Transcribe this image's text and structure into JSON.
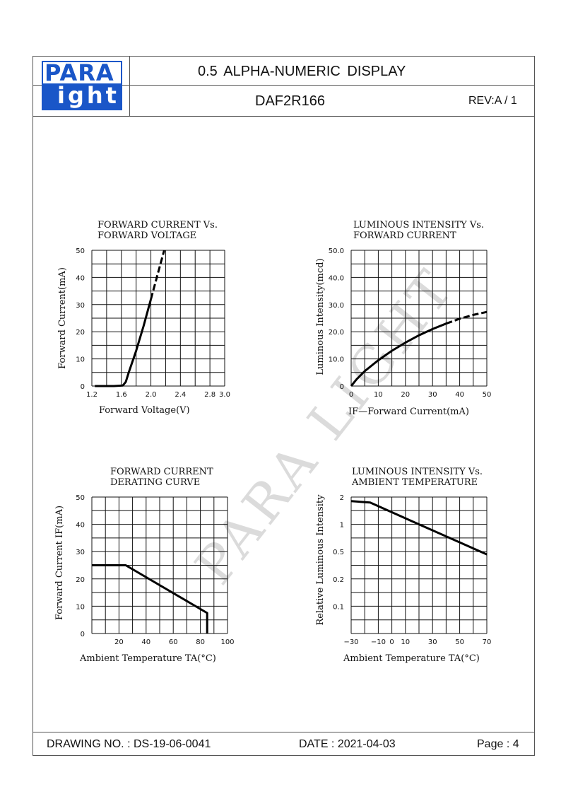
{
  "header": {
    "logo_top": "PARA",
    "logo_bottom": "ight",
    "title": "0.5 ALPHA-NUMERIC DISPLAY",
    "part_number": "DAF2R166",
    "revision": "REV:A / 1"
  },
  "watermark": "PARA LIGHT",
  "footer": {
    "drawing_no": "DRAWING NO. : DS-19-06-0041",
    "date": "DATE : 2021-04-03",
    "page": "Page : 4"
  },
  "chart_data": [
    {
      "id": "c1",
      "type": "line",
      "title_lines": [
        "FORWARD  CURRENT  Vs.",
        "FORWARD  VOLTAGE"
      ],
      "xlabel": "Forward  Voltage(V)",
      "ylabel": "Forward  Current(mA)",
      "xlim": [
        1.2,
        3.0
      ],
      "ylim": [
        0,
        50
      ],
      "xticks": [
        {
          "v": 1.2,
          "t": "1.2"
        },
        {
          "v": 1.6,
          "t": "1.6"
        },
        {
          "v": 2.0,
          "t": "2.0"
        },
        {
          "v": 2.4,
          "t": "2.4"
        },
        {
          "v": 2.8,
          "t": "2.8"
        },
        {
          "v": 3.0,
          "t": "3.0"
        }
      ],
      "yticks": [
        {
          "v": 0,
          "t": "0"
        },
        {
          "v": 10,
          "t": "10"
        },
        {
          "v": 20,
          "t": "20"
        },
        {
          "v": 30,
          "t": "30"
        },
        {
          "v": 40,
          "t": "40"
        },
        {
          "v": 50,
          "t": "50"
        }
      ],
      "xgrid": [
        1.2,
        1.4,
        1.6,
        1.8,
        2.0,
        2.2,
        2.4,
        2.6,
        2.8,
        3.0
      ],
      "ygrid": [
        0,
        5,
        10,
        15,
        20,
        25,
        30,
        35,
        40,
        45,
        50
      ],
      "series": [
        {
          "style": "solid",
          "x": [
            1.24,
            1.5,
            1.62,
            1.66,
            1.7,
            1.8,
            1.9,
            2.0
          ],
          "y": [
            0,
            0,
            0.2,
            1.5,
            5,
            13,
            22,
            32
          ]
        },
        {
          "style": "dashed",
          "x": [
            2.0,
            2.1,
            2.18
          ],
          "y": [
            32,
            42,
            50
          ]
        }
      ],
      "grid": true
    },
    {
      "id": "c2",
      "type": "line",
      "title_lines": [
        "LUMINOUS  INTENSITY  Vs.",
        "FORWARD  CURRENT"
      ],
      "xlabel": "IF—Forward  Current(mA)",
      "ylabel": "Luminous  Intensity(mcd)",
      "xlim": [
        0,
        50
      ],
      "ylim": [
        0,
        50
      ],
      "xticks": [
        {
          "v": 0,
          "t": "0"
        },
        {
          "v": 10,
          "t": "10"
        },
        {
          "v": 20,
          "t": "20"
        },
        {
          "v": 30,
          "t": "30"
        },
        {
          "v": 40,
          "t": "40"
        },
        {
          "v": 50,
          "t": "50"
        }
      ],
      "yticks": [
        {
          "v": 0,
          "t": "0"
        },
        {
          "v": 10,
          "t": "10.0"
        },
        {
          "v": 20,
          "t": "20.0"
        },
        {
          "v": 30,
          "t": "30.0"
        },
        {
          "v": 40,
          "t": "40.0"
        },
        {
          "v": 50,
          "t": "50.0"
        }
      ],
      "xgrid": [
        0,
        5,
        10,
        15,
        20,
        25,
        30,
        35,
        40,
        45,
        50
      ],
      "ygrid": [
        0,
        5,
        10,
        15,
        20,
        25,
        30,
        35,
        40,
        45,
        50
      ],
      "series": [
        {
          "style": "solid",
          "x": [
            0,
            2,
            5,
            10,
            15,
            20,
            25,
            30,
            35
          ],
          "y": [
            0,
            2.5,
            5.5,
            9.5,
            13,
            16,
            18.7,
            21,
            23
          ]
        },
        {
          "style": "dashed",
          "x": [
            35,
            40,
            45,
            50
          ],
          "y": [
            23,
            24.8,
            26.2,
            27.3
          ]
        }
      ],
      "grid": true
    },
    {
      "id": "c3",
      "type": "line",
      "title_lines": [
        "FORWARD  CURRENT",
        "DERATING  CURVE"
      ],
      "xlabel": "Ambient  Temperature  TA(°C)",
      "ylabel": "Forward  Current  IF(mA)",
      "xlim": [
        0,
        100
      ],
      "ylim": [
        0,
        50
      ],
      "xticks": [
        {
          "v": 20,
          "t": "20"
        },
        {
          "v": 40,
          "t": "40"
        },
        {
          "v": 60,
          "t": "60"
        },
        {
          "v": 80,
          "t": "80"
        },
        {
          "v": 100,
          "t": "100"
        }
      ],
      "yticks": [
        {
          "v": 0,
          "t": "0"
        },
        {
          "v": 10,
          "t": "10"
        },
        {
          "v": 20,
          "t": "20"
        },
        {
          "v": 30,
          "t": "30"
        },
        {
          "v": 40,
          "t": "40"
        },
        {
          "v": 50,
          "t": "50"
        }
      ],
      "xgrid": [
        0,
        10,
        20,
        30,
        40,
        50,
        60,
        70,
        80,
        90,
        100
      ],
      "ygrid": [
        0,
        5,
        10,
        15,
        20,
        25,
        30,
        35,
        40,
        45,
        50
      ],
      "series": [
        {
          "style": "solid",
          "x": [
            0,
            25,
            85,
            85
          ],
          "y": [
            25,
            25,
            7.5,
            0
          ]
        }
      ],
      "grid": true
    },
    {
      "id": "c4",
      "type": "line",
      "title_lines": [
        "LUMINOUS  INTENSITY  Vs.",
        "AMBIENT  TEMPERATURE"
      ],
      "xlabel": "Ambient  Temperature  TA(°C)",
      "ylabel": "Relative  Luminous  Intensity",
      "xlim": [
        -30,
        70
      ],
      "ylim": [
        0,
        5
      ],
      "xticks": [
        {
          "v": -30,
          "t": "−30"
        },
        {
          "v": -10,
          "t": "−10"
        },
        {
          "v": 0,
          "t": "0"
        },
        {
          "v": 10,
          "t": "10"
        },
        {
          "v": 30,
          "t": "30"
        },
        {
          "v": 50,
          "t": "50"
        },
        {
          "v": 70,
          "t": "70"
        }
      ],
      "yticks": [
        {
          "v": 1,
          "t": "0.1"
        },
        {
          "v": 2,
          "t": "0.2"
        },
        {
          "v": 3,
          "t": "0.5"
        },
        {
          "v": 4,
          "t": "1"
        },
        {
          "v": 5,
          "t": "2"
        }
      ],
      "xgrid": [
        -30,
        -20,
        -10,
        0,
        10,
        20,
        30,
        40,
        50,
        60,
        70
      ],
      "ygrid": [
        0,
        0.5,
        1,
        1.5,
        2,
        2.5,
        3,
        3.5,
        4,
        4.5,
        5
      ],
      "series": [
        {
          "style": "solid",
          "x": [
            -30,
            -16,
            20,
            70
          ],
          "y": [
            4.85,
            4.8,
            4.0,
            2.9
          ]
        }
      ],
      "grid": true
    }
  ]
}
